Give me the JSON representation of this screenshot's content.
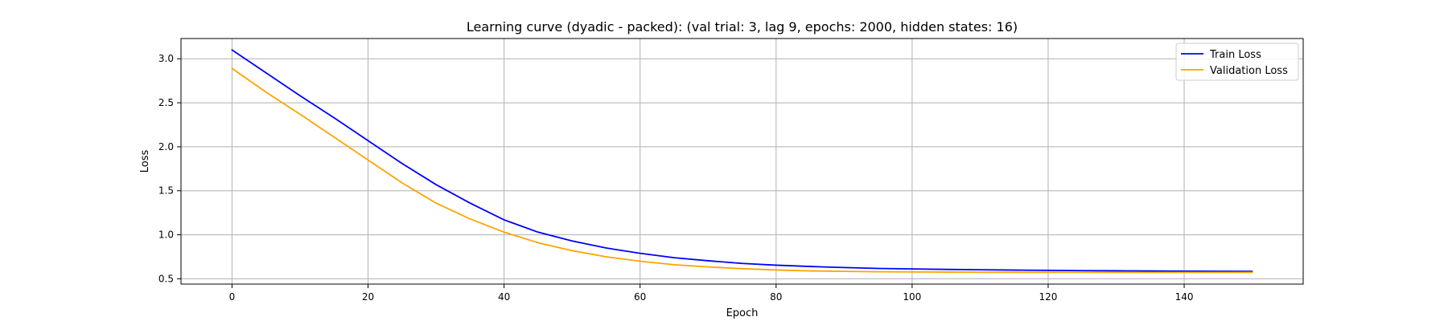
{
  "chart_data": {
    "type": "line",
    "title": "Learning curve (dyadic - packed): (val trial: 3, lag 9, epochs: 2000, hidden states: 16)",
    "xlabel": "Epoch",
    "ylabel": "Loss",
    "xlim": [
      -7.5,
      157.5
    ],
    "ylim": [
      0.44,
      3.23
    ],
    "xticks": [
      0,
      20,
      40,
      60,
      80,
      100,
      120,
      140
    ],
    "yticks": [
      0.5,
      1.0,
      1.5,
      2.0,
      2.5,
      3.0
    ],
    "xtick_labels": [
      "0",
      "20",
      "40",
      "60",
      "80",
      "100",
      "120",
      "140"
    ],
    "ytick_labels": [
      "0.5",
      "1.0",
      "1.5",
      "2.0",
      "2.5",
      "3.0"
    ],
    "grid": true,
    "legend_position": "top-right",
    "series": [
      {
        "name": "Train Loss",
        "color": "#0000ff",
        "x": [
          0,
          5,
          10,
          15,
          20,
          25,
          30,
          35,
          40,
          45,
          50,
          55,
          60,
          65,
          70,
          75,
          80,
          85,
          90,
          95,
          100,
          105,
          110,
          115,
          120,
          125,
          130,
          135,
          140,
          145,
          150
        ],
        "values": [
          3.1,
          2.84,
          2.58,
          2.33,
          2.07,
          1.81,
          1.57,
          1.36,
          1.17,
          1.03,
          0.93,
          0.85,
          0.79,
          0.74,
          0.705,
          0.675,
          0.655,
          0.64,
          0.628,
          0.618,
          0.612,
          0.607,
          0.603,
          0.599,
          0.596,
          0.593,
          0.591,
          0.589,
          0.587,
          0.586,
          0.585
        ]
      },
      {
        "name": "Validation Loss",
        "color": "#ffa500",
        "x": [
          0,
          5,
          10,
          15,
          20,
          25,
          30,
          35,
          40,
          45,
          50,
          55,
          60,
          65,
          70,
          75,
          80,
          85,
          90,
          95,
          100,
          105,
          110,
          115,
          120,
          125,
          130,
          135,
          140,
          145,
          150
        ],
        "values": [
          2.89,
          2.62,
          2.37,
          2.11,
          1.85,
          1.59,
          1.36,
          1.18,
          1.03,
          0.91,
          0.82,
          0.75,
          0.7,
          0.66,
          0.635,
          0.615,
          0.6,
          0.59,
          0.585,
          0.58,
          0.578,
          0.576,
          0.575,
          0.574,
          0.574,
          0.573,
          0.573,
          0.573,
          0.573,
          0.573,
          0.573
        ]
      }
    ]
  }
}
